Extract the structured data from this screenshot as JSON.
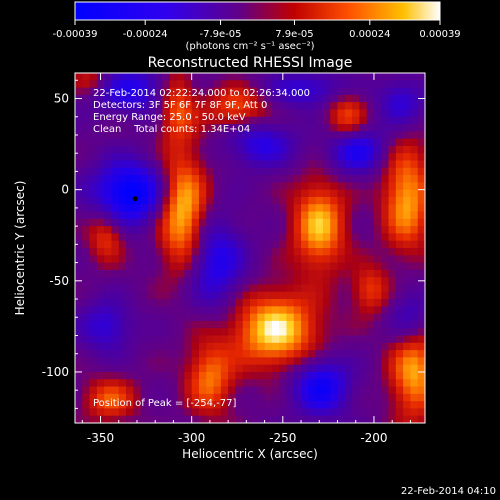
{
  "chart_data": {
    "type": "heatmap",
    "title": "Reconstructed RHESSI Image",
    "xlabel": "Heliocentric X (arcsec)",
    "ylabel": "Heliocentric Y (arcsec)",
    "xlim": [
      -364,
      -172
    ],
    "ylim": [
      -128,
      64
    ],
    "x_ticks": [
      -350,
      -300,
      -250,
      -200
    ],
    "y_ticks": [
      50,
      0,
      -50,
      -100
    ],
    "x_tick_labels": [
      "-350",
      "-300",
      "-250",
      "-200"
    ],
    "y_tick_labels": [
      "50",
      "0",
      "-50",
      "-100"
    ],
    "colorbar": {
      "unit_label": "(photons cm⁻² s⁻¹ asec⁻²)",
      "range": [
        -0.00039,
        0.00039
      ],
      "tick_values": [
        -0.00039,
        -0.00024,
        -7.9e-05,
        7.9e-05,
        0.00024,
        0.00039
      ],
      "tick_labels": [
        "-0.00039",
        "-0.00024",
        "-7.9e-05",
        "7.9e-05",
        "0.00024",
        "0.00039"
      ]
    },
    "annotations": {
      "time_range": "22-Feb-2014 02:22:24.000 to 02:26:34.000",
      "detectors": "Detectors: 3F 5F 6F 7F 8F 9F, Att 0",
      "energy": "Energy Range: 25.0 - 50.0 keV",
      "clean": "Clean    Total counts: 1.34E+04",
      "peak": "Position of Peak = [-254,-77]"
    },
    "peak_position": [
      -254,
      -77
    ],
    "marker_position": [
      -331,
      -5
    ],
    "blobs": [
      {
        "x": -334,
        "y": -2,
        "sign": -1,
        "strength": 1.0,
        "sx": 14,
        "sy": 12
      },
      {
        "x": -333,
        "y": 55,
        "sign": -1,
        "strength": 0.6,
        "sx": 16,
        "sy": 9
      },
      {
        "x": -287,
        "y": -40,
        "sign": -1,
        "strength": 0.65,
        "sx": 11,
        "sy": 17
      },
      {
        "x": -262,
        "y": 25,
        "sign": -1,
        "strength": 0.55,
        "sx": 13,
        "sy": 9
      },
      {
        "x": -229,
        "y": -108,
        "sign": -1,
        "strength": 0.8,
        "sx": 11,
        "sy": 11
      },
      {
        "x": -210,
        "y": 22,
        "sign": -1,
        "strength": 0.7,
        "sx": 11,
        "sy": 9
      },
      {
        "x": -347,
        "y": -75,
        "sign": -1,
        "strength": 0.5,
        "sx": 10,
        "sy": 10
      },
      {
        "x": -180,
        "y": -70,
        "sign": -1,
        "strength": 0.45,
        "sx": 8,
        "sy": 12
      },
      {
        "x": -236,
        "y": 55,
        "sign": -1,
        "strength": 0.5,
        "sx": 16,
        "sy": 7
      },
      {
        "x": -185,
        "y": 48,
        "sign": -1,
        "strength": 0.5,
        "sx": 9,
        "sy": 9
      },
      {
        "x": -305,
        "y": -12,
        "sign": 1,
        "strength": 0.95,
        "sx": 9,
        "sy": 22
      },
      {
        "x": -308,
        "y": 47,
        "sign": 1,
        "strength": 0.6,
        "sx": 7,
        "sy": 14
      },
      {
        "x": -254,
        "y": -77,
        "sign": 1,
        "strength": 1.0,
        "sx": 16,
        "sy": 14
      },
      {
        "x": -230,
        "y": -20,
        "sign": 1,
        "strength": 0.85,
        "sx": 10,
        "sy": 17
      },
      {
        "x": -182,
        "y": -5,
        "sign": 1,
        "strength": 0.8,
        "sx": 9,
        "sy": 20
      },
      {
        "x": -178,
        "y": -100,
        "sign": 1,
        "strength": 0.8,
        "sx": 9,
        "sy": 18
      },
      {
        "x": -290,
        "y": -103,
        "sign": 1,
        "strength": 0.65,
        "sx": 9,
        "sy": 14
      },
      {
        "x": -347,
        "y": -25,
        "sign": 1,
        "strength": 0.5,
        "sx": 7,
        "sy": 10
      },
      {
        "x": -345,
        "y": -115,
        "sign": 1,
        "strength": 0.55,
        "sx": 10,
        "sy": 8
      },
      {
        "x": -215,
        "y": 40,
        "sign": 1,
        "strength": 0.55,
        "sx": 8,
        "sy": 10
      },
      {
        "x": -275,
        "y": 45,
        "sign": 1,
        "strength": 0.55,
        "sx": 12,
        "sy": 8
      },
      {
        "x": -355,
        "y": 60,
        "sign": 1,
        "strength": 0.4,
        "sx": 8,
        "sy": 6
      },
      {
        "x": -202,
        "y": -55,
        "sign": 1,
        "strength": 0.5,
        "sx": 7,
        "sy": 9
      }
    ]
  },
  "footer_date": "22-Feb-2014 04:10",
  "colors": {
    "background": "#000000",
    "text": "#ffffff",
    "marker": "#000000"
  }
}
